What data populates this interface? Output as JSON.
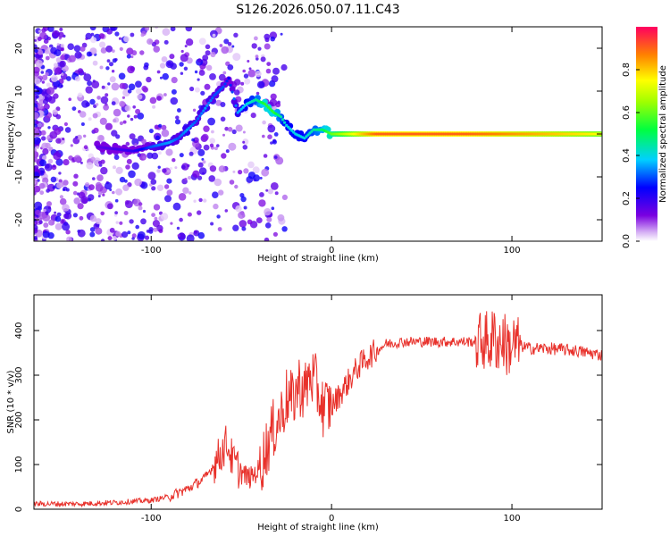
{
  "title": "S126.2026.050.07.11.C43",
  "chart_data": [
    {
      "type": "heatmap",
      "name": "spectrogram",
      "xlabel": "Height of straight line (km)",
      "ylabel": "Frequency (Hz)",
      "xlim": [
        -165,
        150
      ],
      "ylim": [
        -25,
        25
      ],
      "xticks": [
        -100,
        0,
        100
      ],
      "yticks": [
        -20,
        -10,
        0,
        10,
        20
      ],
      "colorbar": {
        "label": "Normalized spectral amplitude",
        "range": [
          0,
          1
        ],
        "ticks": [
          0.0,
          0.2,
          0.4,
          0.6,
          0.8
        ]
      },
      "ridge": [
        {
          "x": -130,
          "y": -3,
          "a": 0.15
        },
        {
          "x": -110,
          "y": -4,
          "a": 0.2
        },
        {
          "x": -100,
          "y": -3,
          "a": 0.3
        },
        {
          "x": -90,
          "y": -2,
          "a": 0.35
        },
        {
          "x": -85,
          "y": -1,
          "a": 0.3
        },
        {
          "x": -80,
          "y": 1,
          "a": 0.35
        },
        {
          "x": -75,
          "y": 3,
          "a": 0.3
        },
        {
          "x": -70,
          "y": 6,
          "a": 0.35
        },
        {
          "x": -65,
          "y": 9,
          "a": 0.3
        },
        {
          "x": -60,
          "y": 11,
          "a": 0.3
        },
        {
          "x": -57,
          "y": 13,
          "a": 0.25
        },
        {
          "x": -52,
          "y": 5,
          "a": 0.35
        },
        {
          "x": -47,
          "y": 7,
          "a": 0.4
        },
        {
          "x": -42,
          "y": 8,
          "a": 0.45
        },
        {
          "x": -37,
          "y": 7,
          "a": 0.55
        },
        {
          "x": -32,
          "y": 5,
          "a": 0.55
        },
        {
          "x": -28,
          "y": 4,
          "a": 0.45
        },
        {
          "x": -25,
          "y": 2,
          "a": 0.4
        },
        {
          "x": -20,
          "y": 0,
          "a": 0.4
        },
        {
          "x": -15,
          "y": -1,
          "a": 0.4
        },
        {
          "x": -10,
          "y": 1,
          "a": 0.45
        },
        {
          "x": -5,
          "y": 1,
          "a": 0.5
        },
        {
          "x": 0,
          "y": 0,
          "a": 0.6
        },
        {
          "x": 25,
          "y": 0,
          "a": 0.9
        },
        {
          "x": 50,
          "y": 0,
          "a": 0.9
        },
        {
          "x": 75,
          "y": 0,
          "a": 0.9
        },
        {
          "x": 100,
          "y": 0,
          "a": 0.85
        },
        {
          "x": 125,
          "y": 0,
          "a": 0.8
        },
        {
          "x": 150,
          "y": 0,
          "a": 0.75
        }
      ]
    },
    {
      "type": "line",
      "name": "snr",
      "xlabel": "Height of straight line (km)",
      "ylabel": "SNR (10 * v/v)",
      "xlim": [
        -165,
        150
      ],
      "ylim": [
        0,
        480
      ],
      "xticks": [
        -100,
        0,
        100
      ],
      "yticks": [
        0,
        100,
        200,
        300,
        400
      ],
      "color": "#e8312b",
      "series": [
        {
          "name": "SNR",
          "x": [
            -165,
            -140,
            -120,
            -100,
            -90,
            -80,
            -70,
            -62,
            -58,
            -55,
            -50,
            -45,
            -40,
            -35,
            -32,
            -28,
            -25,
            -22,
            -18,
            -15,
            -12,
            -10,
            -8,
            -5,
            0,
            5,
            10,
            15,
            20,
            25,
            30,
            40,
            60,
            80,
            85,
            88,
            90,
            92,
            95,
            98,
            100,
            105,
            110,
            120,
            135,
            150
          ],
          "y": [
            12,
            12,
            15,
            20,
            28,
            45,
            70,
            120,
            150,
            110,
            80,
            70,
            90,
            150,
            180,
            210,
            250,
            240,
            280,
            260,
            300,
            290,
            270,
            230,
            230,
            260,
            290,
            320,
            340,
            355,
            370,
            375,
            375,
            375,
            380,
            370,
            390,
            370,
            380,
            360,
            370,
            365,
            360,
            360,
            355,
            345
          ]
        }
      ]
    }
  ]
}
